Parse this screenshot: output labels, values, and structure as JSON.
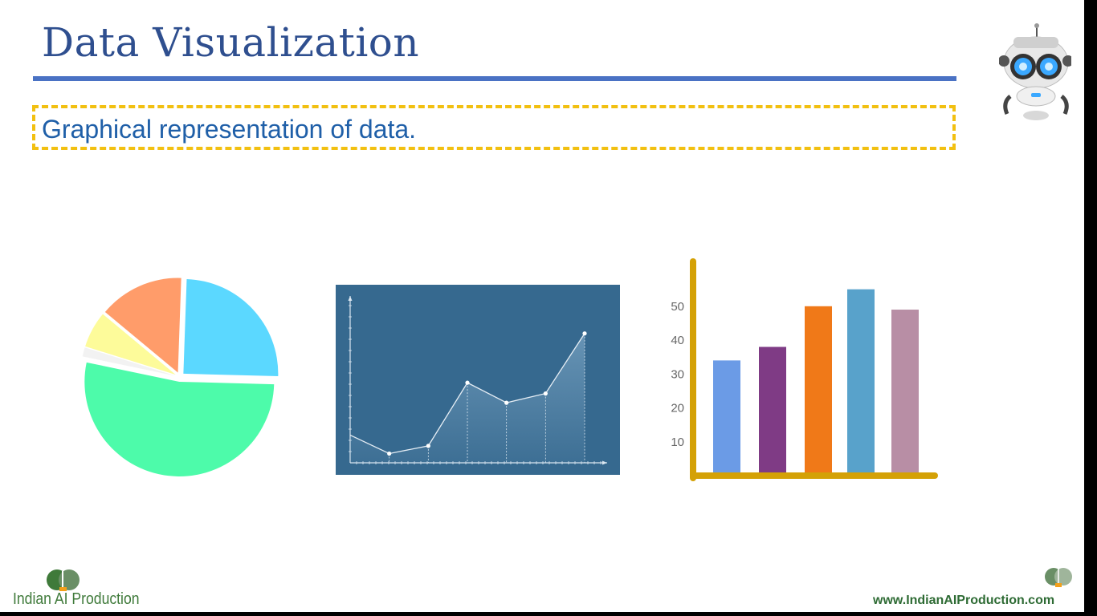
{
  "slide": {
    "title": "Data Visualization",
    "subtitle": "Graphical representation of data.",
    "brand_left": "Indian AI Production",
    "website": "www.IndianAIProduction.com"
  },
  "icons": {
    "robot": "robot-mascot-icon",
    "brain_left": "brain-heads-icon",
    "brain_right": "brain-heads-icon"
  },
  "colors": {
    "title": "#2f4f8f",
    "rule": "#4a72c4",
    "dashed_border": "#f2c011",
    "subtitle": "#1f5fa8",
    "brand": "#3f7a3a"
  },
  "chart_data": [
    {
      "type": "pie",
      "slices": [
        {
          "value": 24,
          "color": "#5bd8ff"
        },
        {
          "value": 51,
          "color": "#4dfbaa"
        },
        {
          "value": 1.5,
          "color": "#f2f2f2"
        },
        {
          "value": 6,
          "color": "#fdfb9a"
        },
        {
          "value": 14,
          "color": "#ff9c6a"
        }
      ]
    },
    {
      "type": "area",
      "x": [
        0,
        1,
        2,
        3,
        4,
        5,
        6
      ],
      "values": [
        18,
        6,
        11,
        52,
        39,
        45,
        84
      ],
      "ylim": [
        0,
        100
      ],
      "background": "#36698f"
    },
    {
      "type": "bar",
      "values": [
        34,
        38,
        50,
        55,
        49
      ],
      "colors": [
        "#6b9be6",
        "#7f3b85",
        "#f07918",
        "#58a2cb",
        "#b88ea5"
      ],
      "ylim": [
        0,
        58
      ],
      "yticks": [
        "10",
        "20",
        "30",
        "40",
        "50"
      ],
      "axis_color": "#d4a106"
    }
  ]
}
